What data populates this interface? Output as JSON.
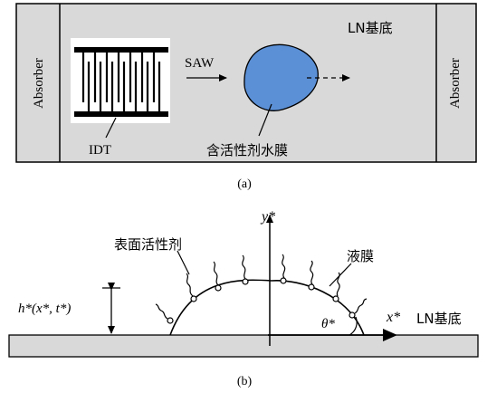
{
  "panel_a": {
    "absorber_left": "Absorber",
    "absorber_right": "Absorber",
    "substrate_label": "LN基底",
    "saw_label": "SAW",
    "idt_label": "IDT",
    "film_label": "含活性剂水膜",
    "caption": "(a)"
  },
  "panel_b": {
    "y_axis_label": "y*",
    "x_axis_label": "x*",
    "substrate_label": "LN基底",
    "surfactant_label": "表面活性剂",
    "liquid_film_label": "液膜",
    "height_label": "h*(x*, t*)",
    "angle_label": "θ*",
    "caption": "(b)"
  },
  "colors": {
    "substrate_fill": "#d9d9d9",
    "droplet_fill": "#5b8fd6",
    "line": "#000000"
  }
}
